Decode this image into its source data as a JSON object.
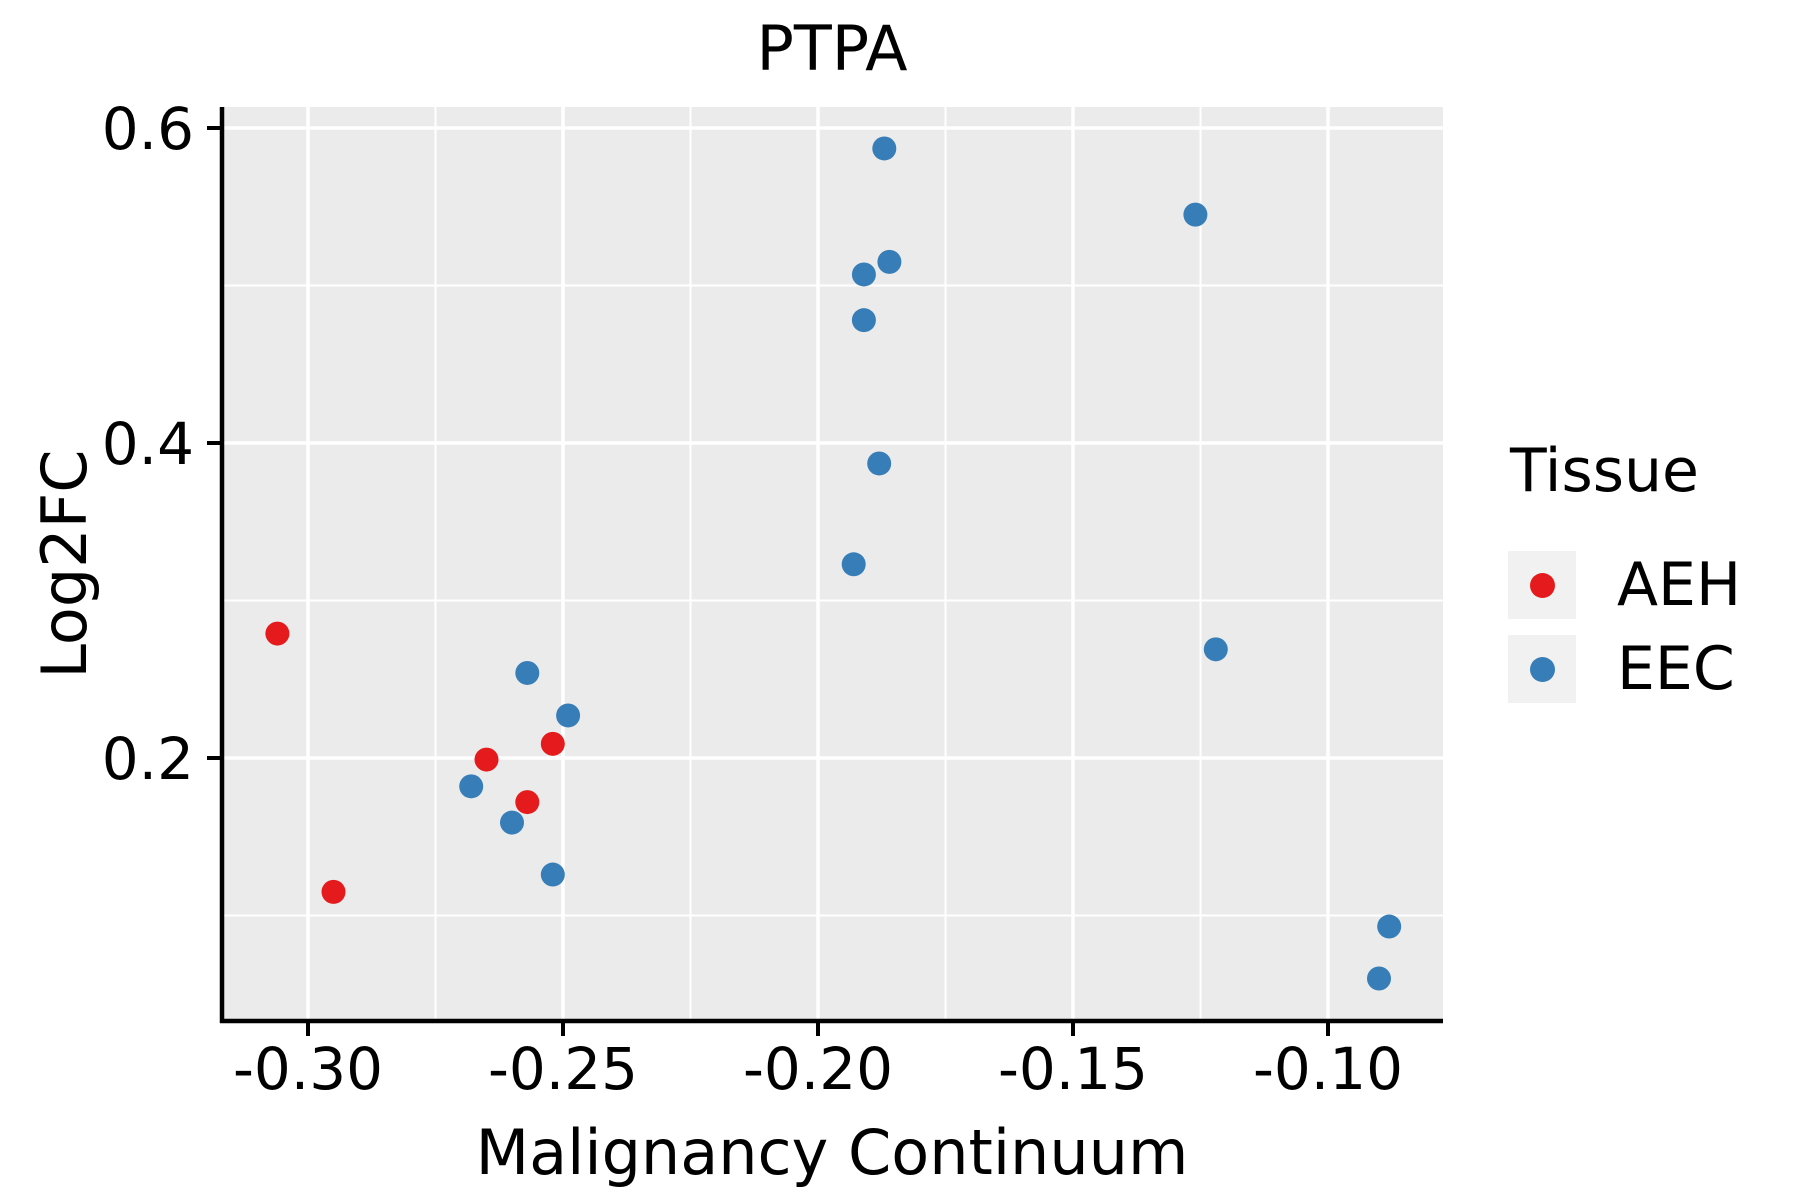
{
  "chart_data": {
    "type": "scatter",
    "title": "PTPA",
    "xlabel": "Malignancy Continuum",
    "ylabel": "Log2FC",
    "xlim": [
      -0.316863,
      -0.077451
    ],
    "ylim": [
      0.033016,
      0.613333
    ],
    "x_ticks": [
      -0.3,
      -0.25,
      -0.2,
      -0.15,
      -0.1
    ],
    "x_tick_labels": [
      "-0.30",
      "-0.25",
      "-0.20",
      "-0.15",
      "-0.10"
    ],
    "x_minor_ticks": [
      -0.275,
      -0.225,
      -0.175,
      -0.125
    ],
    "y_ticks": [
      0.6,
      0.4,
      0.2
    ],
    "y_tick_labels": [
      "0.6",
      "0.4",
      "0.2"
    ],
    "y_minor_ticks": [
      0.5,
      0.3,
      0.1
    ],
    "grid": true,
    "panel_background": "#ebebeb",
    "grid_color": "#ffffff",
    "axis_color": "#000000",
    "legend": {
      "title": "Tissue",
      "position": "right",
      "entries": [
        {
          "label": "AEH",
          "color": "#e41a1c"
        },
        {
          "label": "EEC",
          "color": "#377eb8"
        }
      ]
    },
    "series": [
      {
        "name": "AEH",
        "color": "#e41a1c",
        "points": [
          [
            -0.306,
            0.279
          ],
          [
            -0.295,
            0.115
          ],
          [
            -0.265,
            0.199
          ],
          [
            -0.252,
            0.209
          ],
          [
            -0.257,
            0.172
          ]
        ]
      },
      {
        "name": "EEC",
        "color": "#377eb8",
        "points": [
          [
            -0.257,
            0.254
          ],
          [
            -0.249,
            0.227
          ],
          [
            -0.268,
            0.182
          ],
          [
            -0.26,
            0.159
          ],
          [
            -0.252,
            0.126
          ],
          [
            -0.193,
            0.323
          ],
          [
            -0.188,
            0.387
          ],
          [
            -0.191,
            0.478
          ],
          [
            -0.191,
            0.507
          ],
          [
            -0.186,
            0.515
          ],
          [
            -0.187,
            0.587
          ],
          [
            -0.126,
            0.545
          ],
          [
            -0.122,
            0.269
          ],
          [
            -0.088,
            0.093
          ],
          [
            -0.09,
            0.06
          ]
        ]
      }
    ]
  }
}
